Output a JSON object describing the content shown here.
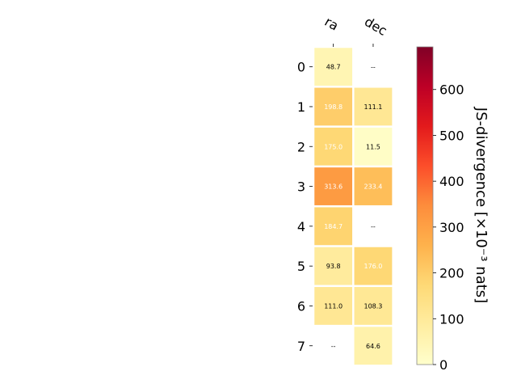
{
  "chart_data": {
    "type": "heatmap",
    "columns": [
      "ra",
      "dec"
    ],
    "rows": [
      "0",
      "1",
      "2",
      "3",
      "4",
      "5",
      "6",
      "7"
    ],
    "values": [
      [
        48.7,
        null
      ],
      [
        198.8,
        111.1
      ],
      [
        175.0,
        11.5
      ],
      [
        313.6,
        233.4
      ],
      [
        184.7,
        null
      ],
      [
        93.8,
        176.0
      ],
      [
        111.0,
        108.3
      ],
      [
        null,
        64.6
      ]
    ],
    "cell_labels": [
      [
        "48.7",
        "--"
      ],
      [
        "198.8",
        "111.1"
      ],
      [
        "175.0",
        "11.5"
      ],
      [
        "313.6",
        "233.4"
      ],
      [
        "184.7",
        "--"
      ],
      [
        "93.8",
        "176.0"
      ],
      [
        "111.0",
        "108.3"
      ],
      [
        "--",
        "64.6"
      ]
    ],
    "colorbar": {
      "label": "JS-divergence [×10⁻³ nats]",
      "range": [
        0,
        693
      ],
      "ticks": [
        0,
        100,
        200,
        300,
        400,
        500,
        600
      ],
      "colormap": "YlOrRd"
    }
  }
}
